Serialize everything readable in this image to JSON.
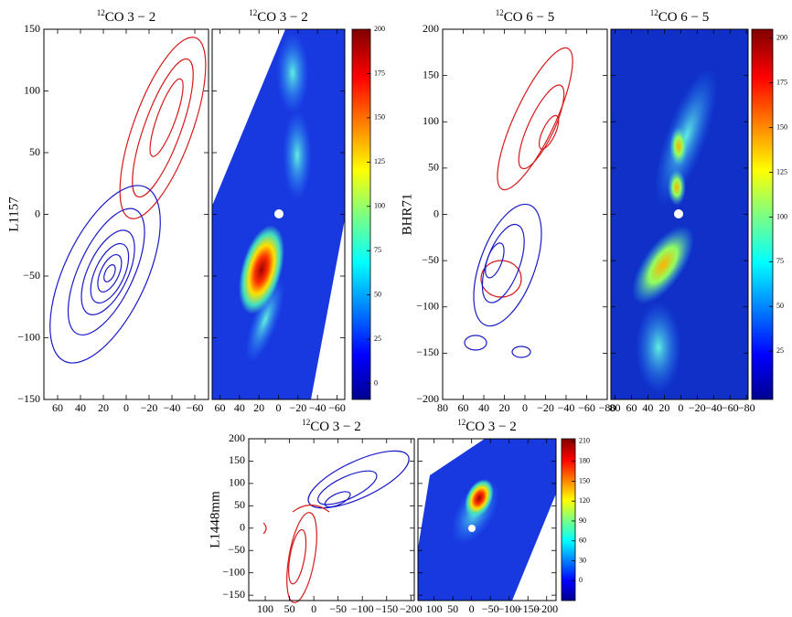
{
  "chart_data": [
    {
      "type": "contour",
      "title": {
        "sup": "12",
        "text": "CO 3 − 2"
      },
      "ylabel": "L1157",
      "xlim": [
        72,
        -72
      ],
      "ylim": [
        -150,
        150
      ],
      "xticks": [
        60,
        40,
        20,
        0,
        {
          "value": -20,
          "label": "−20"
        },
        {
          "value": -40,
          "label": "−40"
        },
        {
          "value": -60,
          "label": "−60"
        }
      ],
      "yticks": [
        {
          "value": -150,
          "label": "−150"
        },
        {
          "value": -100,
          "label": "−100"
        },
        {
          "value": -50,
          "label": "−50"
        },
        0,
        50,
        100,
        150
      ]
    },
    {
      "type": "heatmap",
      "title": {
        "sup": "12",
        "text": "CO 3 − 2"
      },
      "xlim": [
        68,
        -68
      ],
      "ylim": [
        -150,
        150
      ],
      "xticks": [
        60,
        40,
        20,
        0,
        {
          "value": -20,
          "label": "−20"
        },
        {
          "value": -40,
          "label": "−40"
        },
        {
          "value": -60,
          "label": "−60"
        }
      ],
      "yticks": [
        -150,
        -100,
        -50,
        0,
        50,
        100,
        150
      ],
      "clim": [
        -9,
        200
      ],
      "cticks": [
        0,
        25,
        50,
        75,
        100,
        125,
        150,
        175,
        200
      ]
    },
    {
      "type": "contour",
      "title": {
        "sup": "12",
        "text": "CO 6 − 5"
      },
      "ylabel": "BHR71",
      "xlim": [
        80,
        -80
      ],
      "ylim": [
        -200,
        200
      ],
      "xticks": [
        80,
        60,
        40,
        20,
        0,
        {
          "value": -20,
          "label": "−20"
        },
        {
          "value": -40,
          "label": "−40"
        },
        {
          "value": -60,
          "label": "−60"
        },
        {
          "value": -80,
          "label": "−80"
        }
      ],
      "yticks": [
        {
          "value": -200,
          "label": "−200"
        },
        {
          "value": -150,
          "label": "−150"
        },
        {
          "value": -100,
          "label": "−100"
        },
        {
          "value": -50,
          "label": "−50"
        },
        0,
        50,
        100,
        150,
        200
      ]
    },
    {
      "type": "heatmap",
      "title": {
        "sup": "12",
        "text": "CO 6 − 5"
      },
      "xlim": [
        85,
        -82
      ],
      "ylim": [
        -200,
        200
      ],
      "xticks": [
        80,
        60,
        40,
        20,
        0,
        {
          "value": -20,
          "label": "−20"
        },
        {
          "value": -40,
          "label": "−40"
        },
        {
          "value": -60,
          "label": "−60"
        },
        {
          "value": -80,
          "label": "−80"
        }
      ],
      "yticks": [
        -200,
        -150,
        -100,
        -50,
        0,
        50,
        100,
        150,
        200
      ],
      "clim": [
        -2,
        205
      ],
      "cticks": [
        25,
        50,
        75,
        100,
        125,
        150,
        175,
        200
      ]
    },
    {
      "type": "contour",
      "title": {
        "sup": "12",
        "text": "CO 3 − 2"
      },
      "ylabel": "L1448mm",
      "xlim": [
        134,
        -207
      ],
      "ylim": [
        -162,
        200
      ],
      "xticks": [
        100,
        50,
        0,
        {
          "value": -50,
          "label": "−50"
        },
        {
          "value": -100,
          "label": "−100"
        },
        {
          "value": -150,
          "label": "−150"
        },
        {
          "value": -200,
          "label": "−200"
        }
      ],
      "yticks": [
        {
          "value": -150,
          "label": "−150"
        },
        {
          "value": -100,
          "label": "−100"
        },
        {
          "value": -50,
          "label": "−50"
        },
        0,
        50,
        100,
        150,
        200
      ]
    },
    {
      "type": "heatmap",
      "title": {
        "sup": "12",
        "text": "CO 3 − 2"
      },
      "xlim": [
        143,
        -225
      ],
      "ylim": [
        -162,
        200
      ],
      "xticks": [
        100,
        50,
        0,
        {
          "value": -50,
          "label": "−50"
        },
        {
          "value": -100,
          "label": "−100"
        },
        {
          "value": -150,
          "label": "−150"
        },
        {
          "value": -200,
          "label": "−200"
        }
      ],
      "yticks": [
        -150,
        -100,
        -50,
        0,
        50,
        100,
        150,
        200
      ],
      "clim": [
        -30,
        214
      ],
      "cticks": [
        0,
        30,
        60,
        90,
        120,
        150,
        180,
        210
      ]
    }
  ]
}
